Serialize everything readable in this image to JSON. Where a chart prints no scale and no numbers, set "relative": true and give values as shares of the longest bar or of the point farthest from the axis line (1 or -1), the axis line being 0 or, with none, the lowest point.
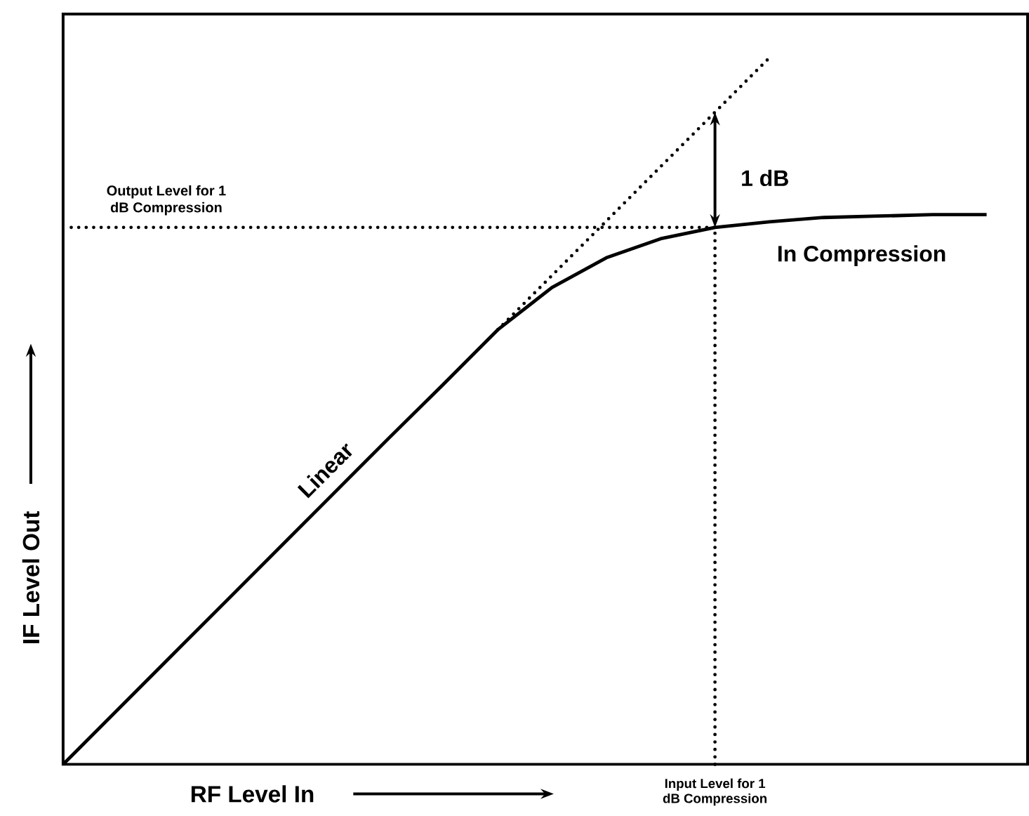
{
  "chart_data": {
    "type": "line",
    "relative": true,
    "xlabel": "RF Level In",
    "ylabel": "IF Level Out",
    "categories": [
      null,
      null,
      null,
      null,
      null,
      null,
      null,
      null,
      null,
      null,
      null,
      null,
      null,
      null,
      null,
      null,
      null,
      null
    ],
    "series": [
      {
        "color": "#000000",
        "line_style": "solid",
        "values": [
          0,
          0.077,
          0.154,
          0.231,
          0.308,
          0.385,
          0.462,
          0.538,
          0.615,
          0.675,
          0.717,
          0.744,
          0.76,
          0.768,
          0.774,
          0.776,
          0.778,
          0.778
        ]
      },
      {
        "color": "#000000",
        "line_style": "dotted",
        "values": [
          null,
          null,
          null,
          null,
          null,
          null,
          null,
          null,
          0.615,
          0.692,
          0.769,
          0.846,
          0.923,
          1.0,
          null,
          null,
          null,
          null
        ]
      }
    ],
    "ref_lines": [
      {
        "axis": "y",
        "value": 0.76,
        "label": "Output Level for 1 dB Compression",
        "line_style": "dotted",
        "color": "#000000"
      }
    ],
    "annotations": [
      "Linear",
      "In Compression",
      "1 dB",
      "Input Level for 1 dB Compression"
    ],
    "marker": "none"
  }
}
